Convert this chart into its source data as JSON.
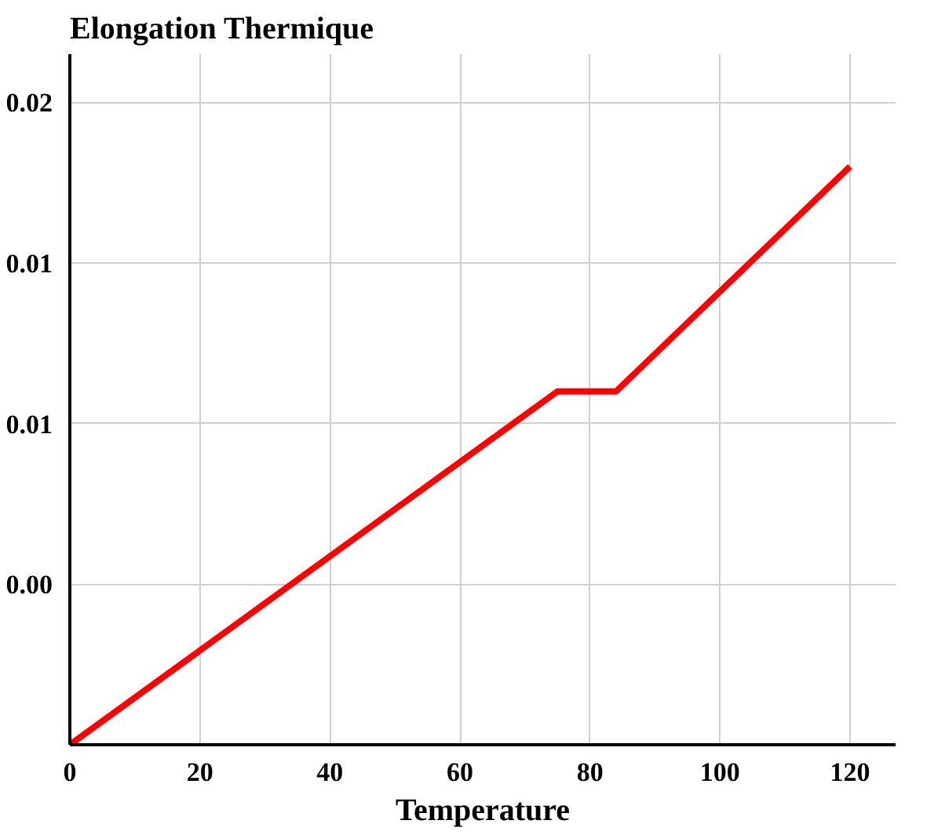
{
  "chart_data": {
    "type": "line",
    "ylabel": "Elongation Thermique",
    "xlabel": "Temperature",
    "x": [
      0,
      75,
      84,
      120
    ],
    "series": [
      {
        "color": "#ff0000",
        "values": [
          0,
          0.011,
          0.011,
          0.018
        ]
      }
    ],
    "xlim": [
      0,
      127
    ],
    "xticks": [
      0,
      20,
      40,
      60,
      80,
      100,
      120
    ],
    "ylim": [
      0,
      0.0215
    ],
    "yticks": [
      {
        "value": 0.005,
        "label": "0.00"
      },
      {
        "value": 0.01,
        "label": "0.01"
      },
      {
        "value": 0.015,
        "label": "0.01"
      },
      {
        "value": 0.02,
        "label": "0.02"
      }
    ],
    "grid": true,
    "marker": "none",
    "line_style": "solid"
  }
}
